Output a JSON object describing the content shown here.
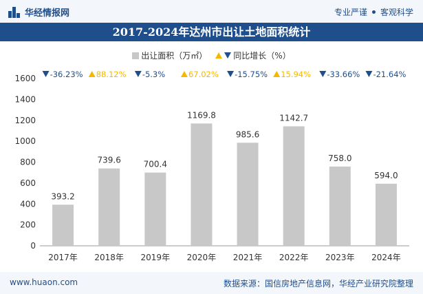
{
  "header": {
    "brand": "华经情报网",
    "tagline_left": "专业严谨",
    "tagline_right": "客观科学"
  },
  "footer": {
    "website": "www.huaon.com",
    "source": "数据来源：国信房地产信息网，华经产业研究院整理"
  },
  "colors": {
    "bar": "#c8c8c8",
    "up": "#f5b800",
    "down": "#1f4e8c",
    "brand": "#1f4e8c"
  },
  "chart_data": {
    "type": "bar",
    "title": "2017-2024年达州市出让土地面积统计",
    "legend": {
      "series_label": "出让面积（万㎡）",
      "growth_label": "同比增长（%）"
    },
    "categories": [
      "2017年",
      "2018年",
      "2019年",
      "2020年",
      "2021年",
      "2022年",
      "2023年",
      "2024年"
    ],
    "values": [
      393.2,
      739.6,
      700.4,
      1169.8,
      985.6,
      1142.7,
      758.0,
      594.0
    ],
    "value_labels": [
      "393.2",
      "739.6",
      "700.4",
      "1169.8",
      "985.6",
      "1142.7",
      "758.0",
      "594.0"
    ],
    "growth": [
      "-36.23%",
      "88.12%",
      "-5.3%",
      "67.02%",
      "-15.75%",
      "15.94%",
      "-33.66%",
      "-21.64%"
    ],
    "growth_direction": [
      "down",
      "up",
      "down",
      "up",
      "down",
      "up",
      "down",
      "down"
    ],
    "ylim": [
      0,
      1600
    ],
    "yticks": [
      0,
      200,
      400,
      600,
      800,
      1000,
      1200,
      1400,
      1600
    ],
    "xlabel": "",
    "ylabel": ""
  }
}
